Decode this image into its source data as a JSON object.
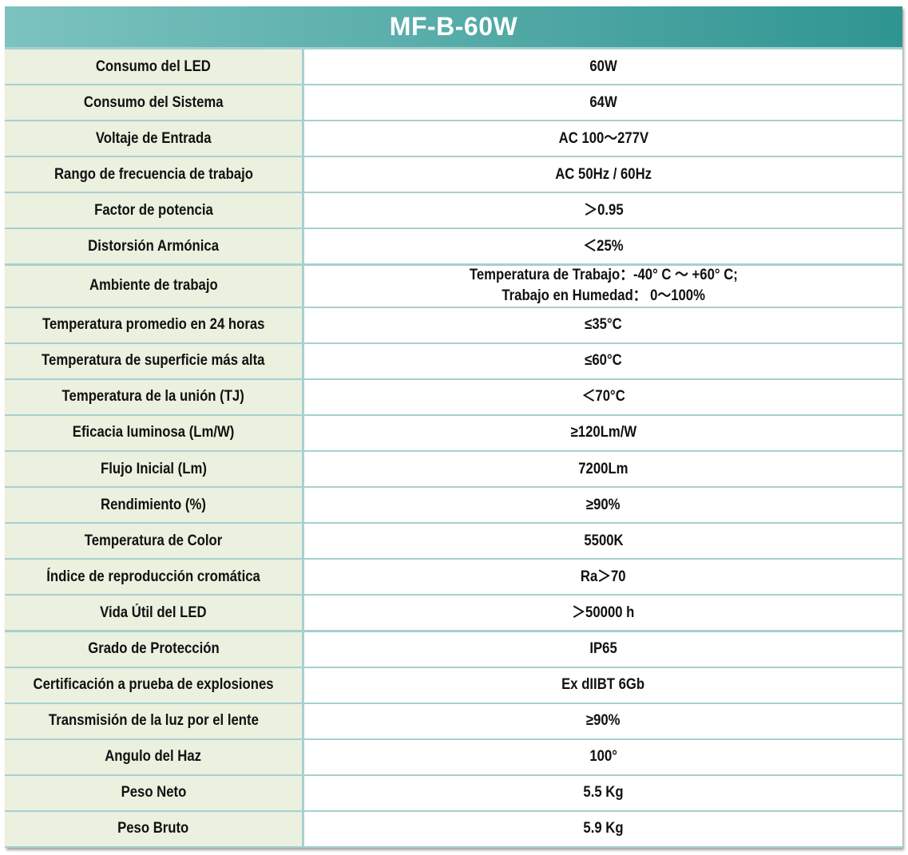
{
  "title": "MF-B-60W",
  "rows": [
    {
      "label": "Consumo del LED",
      "value": "60W"
    },
    {
      "label": "Consumo del Sistema",
      "value": "64W"
    },
    {
      "label": "Voltaje de Entrada",
      "value": "AC 100～277V"
    },
    {
      "label": "Rango de frecuencia de trabajo",
      "value": "AC 50Hz / 60Hz"
    },
    {
      "label": "Factor de potencia",
      "value": "＞0.95"
    },
    {
      "label": "Distorsión Armónica",
      "value": "＜25%"
    },
    {
      "label": "Ambiente de trabajo",
      "value": "Temperatura de Trabajo：-40° C ～ +60° C;",
      "value2": "Trabajo en Humedad： 0～100%"
    },
    {
      "label": "Temperatura promedio en 24 horas",
      "value": "≤35°C"
    },
    {
      "label": "Temperatura de superficie más alta",
      "value": "≤60°C"
    },
    {
      "label": "Temperatura de la unión (TJ)",
      "value": "＜70°C"
    },
    {
      "label": "Eficacia luminosa (Lm/W)",
      "value": "≥120Lm/W"
    },
    {
      "label": "Flujo Inicial (Lm)",
      "value": "7200Lm"
    },
    {
      "label": "Rendimiento (%)",
      "value": "≥90%"
    },
    {
      "label": "Temperatura de Color",
      "value": "5500K"
    },
    {
      "label": "Índice de reproducción cromática",
      "value": "Ra＞70"
    },
    {
      "label": "Vida Útil del LED",
      "value": "＞50000 h"
    },
    {
      "label": "Grado de Protección",
      "value": "IP65"
    },
    {
      "label": "Certificación a prueba de explosiones",
      "value": "Ex dIIBT 6Gb"
    },
    {
      "label": "Transmisión de la luz por el lente",
      "value": "≥90%"
    },
    {
      "label": "Angulo del Haz",
      "value": "100°"
    },
    {
      "label": "Peso Neto",
      "value": "5.5 Kg"
    },
    {
      "label": "Peso Bruto",
      "value": "5.9 Kg"
    }
  ]
}
